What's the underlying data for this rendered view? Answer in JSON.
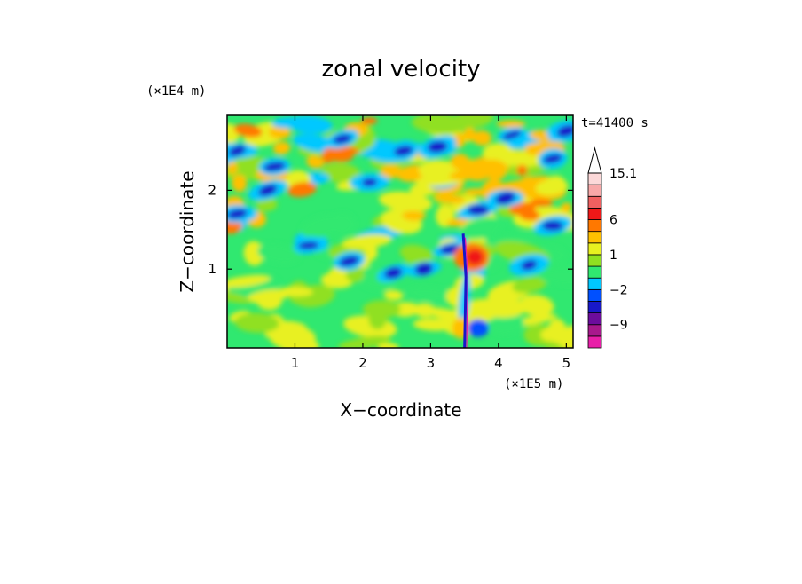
{
  "chart_data": {
    "type": "heatmap",
    "title": "zonal velocity",
    "xlabel": "X−coordinate",
    "ylabel": "Z−coordinate",
    "x_unit": "(×1E5 m)",
    "y_unit": "(×1E4 m)",
    "annotation": "t=41400 s",
    "xlim": [
      0.0,
      5.1
    ],
    "ylim": [
      0.0,
      2.95
    ],
    "x_ticks": [
      {
        "value": 1,
        "label": "1"
      },
      {
        "value": 2,
        "label": "2"
      },
      {
        "value": 3,
        "label": "3"
      },
      {
        "value": 4,
        "label": "4"
      },
      {
        "value": 5,
        "label": "5"
      }
    ],
    "y_ticks": [
      {
        "value": 1,
        "label": "1"
      },
      {
        "value": 2,
        "label": "2"
      }
    ],
    "colorbar": {
      "extend_max": true,
      "levels": [
        -15,
        -12,
        -9,
        -6,
        -4,
        -2,
        -1,
        0,
        1,
        2,
        4,
        6,
        9,
        12,
        15.1
      ],
      "colors": [
        "#e81ea8",
        "#a8188c",
        "#6c0c9c",
        "#1818c8",
        "#0050ff",
        "#00c8ff",
        "#30e870",
        "#90e020",
        "#e8f020",
        "#ffc000",
        "#ff7800",
        "#f01818",
        "#f06060",
        "#f8a8a8",
        "#fcd8d8"
      ],
      "tick_labels": [
        {
          "value": 15.1,
          "label": "15.1"
        },
        {
          "value": 6,
          "label": "6"
        },
        {
          "value": 1,
          "label": "1"
        },
        {
          "value": -2,
          "label": "−2"
        },
        {
          "value": -9,
          "label": "−9"
        }
      ]
    }
  }
}
